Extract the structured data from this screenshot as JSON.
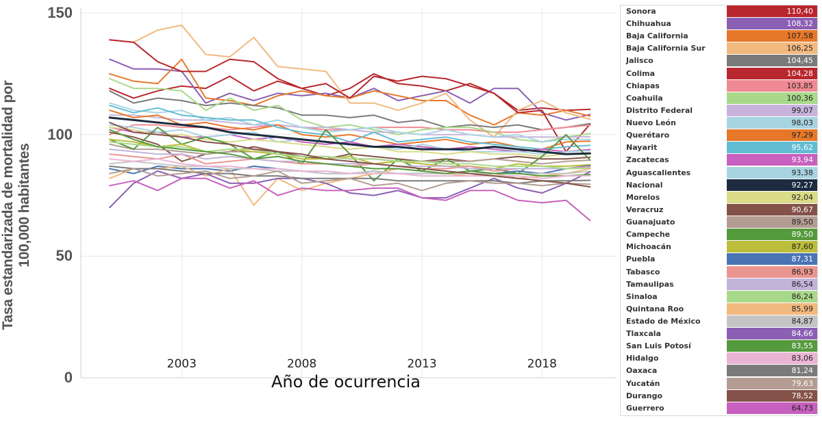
{
  "chart_data": {
    "type": "line",
    "title": "",
    "xlabel": "Año de ocurrencia",
    "ylabel": "Tasa estandarizada de mortalidad por 100,000 habitantes",
    "x": [
      2000,
      2001,
      2002,
      2003,
      2004,
      2005,
      2006,
      2007,
      2008,
      2009,
      2010,
      2011,
      2012,
      2013,
      2014,
      2015,
      2016,
      2017,
      2018,
      2019,
      2020
    ],
    "xticks": [
      2003,
      2008,
      2013,
      2018
    ],
    "xlim": [
      1998.8,
      2021.1
    ],
    "yticks": [
      0,
      50,
      100,
      150
    ],
    "ylim": [
      0,
      152
    ],
    "grid": true,
    "legend_position": "right",
    "series": [
      {
        "name": "Sonora",
        "color": "#b8272d",
        "label": "110,40",
        "light": true,
        "values": [
          119,
          115,
          118,
          120,
          119,
          124,
          118,
          122,
          119,
          116,
          119,
          125,
          121,
          120,
          118,
          121,
          117,
          110,
          111,
          110,
          110.4
        ]
      },
      {
        "name": "Chihuahua",
        "color": "#8a5fb4",
        "label": "108,32",
        "light": true,
        "values": [
          131,
          127,
          127,
          126,
          113,
          117,
          114,
          117,
          116,
          117,
          115,
          119,
          114,
          116,
          118,
          113,
          119,
          119,
          109,
          106,
          108.3
        ]
      },
      {
        "name": "Baja California",
        "color": "#e7782a",
        "label": "107,58",
        "light": false,
        "values": [
          125,
          122,
          121,
          131,
          115,
          114,
          112,
          116,
          118,
          116,
          115,
          118,
          116,
          114,
          114,
          108,
          104,
          109,
          108,
          110,
          107.6
        ]
      },
      {
        "name": "Baja California Sur",
        "color": "#f2b97f",
        "label": "106,25",
        "light": false,
        "values": [
          139,
          138,
          143,
          145,
          133,
          132,
          140,
          128,
          127,
          126,
          113,
          113,
          110,
          113,
          117,
          106,
          99,
          110,
          114,
          109,
          106.3
        ]
      },
      {
        "name": "Jalisco",
        "color": "#7a7a7a",
        "label": "104,45",
        "light": true,
        "values": [
          118,
          113,
          115,
          114,
          112,
          113,
          112,
          111,
          108,
          108,
          107,
          108,
          105,
          106,
          103,
          104,
          103,
          104,
          102,
          103,
          104.5
        ]
      },
      {
        "name": "Colima",
        "color": "#b8272d",
        "label": "104,28",
        "light": true,
        "values": [
          139,
          138,
          130,
          126,
          126,
          131,
          130,
          123,
          119,
          121,
          115,
          124,
          122,
          124,
          123,
          120,
          117,
          109,
          110,
          93,
          104.3
        ]
      },
      {
        "name": "Chiapas",
        "color": "#f08a92",
        "label": "103,85",
        "light": false,
        "values": [
          100,
          104,
          104,
          103,
          103,
          102,
          103,
          104,
          103,
          102,
          102,
          103,
          103,
          103,
          102,
          102,
          101,
          101,
          102,
          103,
          103.9
        ]
      },
      {
        "name": "Coahuila",
        "color": "#a8d98a",
        "label": "100,36",
        "light": false,
        "values": [
          123,
          119,
          119,
          118,
          110,
          115,
          110,
          112,
          106,
          103,
          104,
          102,
          100,
          102,
          103,
          103,
          101,
          98,
          97,
          99,
          100.4
        ]
      },
      {
        "name": "Distrito Federal",
        "color": "#c9b3dc",
        "label": "99,07",
        "light": false,
        "values": [
          108,
          108,
          107,
          106,
          106,
          105,
          104,
          104,
          103,
          103,
          102,
          101,
          101,
          100,
          100,
          100,
          99,
          99,
          99,
          99,
          99.1
        ]
      },
      {
        "name": "Nuevo León",
        "color": "#a8d4e2",
        "label": "98,03",
        "light": false,
        "values": [
          113,
          110,
          109,
          110,
          106,
          107,
          104,
          106,
          103,
          101,
          102,
          103,
          101,
          100,
          102,
          100,
          99,
          100,
          97,
          98,
          98.0
        ]
      },
      {
        "name": "Querétaro",
        "color": "#e7782a",
        "label": "97,29",
        "light": false,
        "values": [
          110,
          107,
          108,
          104,
          105,
          103,
          102,
          104,
          100,
          99,
          100,
          98,
          96,
          97,
          98,
          96,
          97,
          95,
          94,
          97,
          97.3
        ]
      },
      {
        "name": "Nayarit",
        "color": "#62bcd1",
        "label": "95,62",
        "light": true,
        "values": [
          112,
          109,
          111,
          108,
          107,
          106,
          106,
          103,
          101,
          100,
          97,
          101,
          97,
          98,
          99,
          97,
          96,
          95,
          94,
          95,
          95.6
        ]
      },
      {
        "name": "Zacatecas",
        "color": "#c760be",
        "label": "93,94",
        "light": true,
        "values": [
          103,
          101,
          101,
          99,
          99,
          100,
          98,
          99,
          97,
          96,
          97,
          95,
          96,
          95,
          94,
          95,
          94,
          93,
          94,
          93,
          93.9
        ]
      },
      {
        "name": "Aguascalientes",
        "color": "#a8d4e2",
        "label": "93,38",
        "light": false,
        "values": [
          104,
          103,
          101,
          102,
          99,
          100,
          101,
          97,
          98,
          97,
          96,
          95,
          94,
          96,
          94,
          93,
          93,
          93,
          92,
          93,
          93.4
        ]
      },
      {
        "name": "Nacional",
        "color": "#1c2b3f",
        "label": "92,27",
        "light": true,
        "width": 3,
        "values": [
          107,
          106,
          105,
          104,
          103,
          101,
          100,
          99,
          98,
          97,
          96,
          95,
          95,
          94,
          94,
          94,
          95,
          94,
          93,
          92,
          92.3
        ]
      },
      {
        "name": "Morelos",
        "color": "#dbdb88",
        "label": "92,04",
        "light": false,
        "values": [
          103,
          102,
          100,
          100,
          98,
          97,
          98,
          97,
          96,
          95,
          94,
          95,
          93,
          93,
          92,
          93,
          92,
          92,
          91,
          92,
          92.0
        ]
      },
      {
        "name": "Veracruz",
        "color": "#845248",
        "label": "90,67",
        "light": true,
        "values": [
          101,
          99,
          96,
          89,
          92,
          93,
          95,
          93,
          91,
          90,
          92,
          91,
          90,
          89,
          90,
          89,
          90,
          91,
          90,
          90,
          90.7
        ]
      },
      {
        "name": "Guanajuato",
        "color": "#b49c92",
        "label": "89,50",
        "light": false,
        "values": [
          96,
          94,
          94,
          93,
          92,
          93,
          93,
          92,
          91,
          91,
          90,
          90,
          89,
          89,
          89,
          89,
          90,
          89,
          88,
          89,
          89.5
        ]
      },
      {
        "name": "Campeche",
        "color": "#559a3d",
        "label": "89,50",
        "light": true,
        "values": [
          98,
          94,
          103,
          96,
          99,
          96,
          90,
          93,
          88,
          102,
          92,
          81,
          90,
          85,
          90,
          85,
          86,
          84,
          91,
          100,
          89.5
        ]
      },
      {
        "name": "Michoacán",
        "color": "#bcbd3a",
        "label": "87,60",
        "light": false,
        "values": [
          98,
          97,
          95,
          96,
          93,
          94,
          93,
          92,
          90,
          90,
          91,
          88,
          89,
          88,
          87,
          87,
          86,
          88,
          87,
          87,
          87.6
        ]
      },
      {
        "name": "Puebla",
        "color": "#4a75b5",
        "label": "87,31",
        "light": true,
        "values": [
          86,
          84,
          87,
          86,
          86,
          85,
          87,
          86,
          85,
          84,
          84,
          85,
          84,
          84,
          84,
          85,
          84,
          85,
          84,
          86,
          87.3
        ]
      },
      {
        "name": "Tabasco",
        "color": "#eb9590",
        "label": "86,93",
        "light": false,
        "values": [
          92,
          91,
          90,
          92,
          88,
          89,
          90,
          89,
          88,
          88,
          87,
          88,
          87,
          86,
          86,
          87,
          85,
          86,
          86,
          86,
          86.9
        ]
      },
      {
        "name": "Tamaulipas",
        "color": "#c2b3d9",
        "label": "86,54",
        "light": false,
        "values": [
          94,
          93,
          92,
          92,
          90,
          91,
          90,
          89,
          89,
          88,
          88,
          88,
          87,
          87,
          87,
          86,
          86,
          86,
          86,
          86,
          86.5
        ]
      },
      {
        "name": "Sinaloa",
        "color": "#a8d98a",
        "label": "86,24",
        "light": false,
        "values": [
          97,
          96,
          95,
          95,
          93,
          94,
          94,
          92,
          91,
          91,
          90,
          90,
          89,
          89,
          88,
          88,
          87,
          87,
          87,
          86,
          86.2
        ]
      },
      {
        "name": "Quintana Roo",
        "color": "#f2b97f",
        "label": "85,99",
        "light": false,
        "values": [
          82,
          86,
          86,
          87,
          83,
          86,
          71,
          82,
          77,
          80,
          82,
          84,
          86,
          85,
          84,
          83,
          84,
          82,
          83,
          84,
          86.0
        ]
      },
      {
        "name": "Estado de México",
        "color": "#c4c4c4",
        "label": "84,87",
        "light": false,
        "values": [
          88,
          89,
          88,
          87,
          87,
          86,
          86,
          85,
          85,
          84,
          84,
          85,
          84,
          84,
          84,
          84,
          84,
          84,
          84,
          84,
          84.9
        ]
      },
      {
        "name": "Tlaxcala",
        "color": "#8a5fb4",
        "label": "84,66",
        "light": true,
        "values": [
          70,
          80,
          85,
          82,
          84,
          80,
          80,
          82,
          82,
          80,
          76,
          75,
          77,
          74,
          74,
          78,
          82,
          78,
          76,
          80,
          84.7
        ]
      },
      {
        "name": "San Luis Potosí",
        "color": "#559a3d",
        "label": "83,55",
        "light": true,
        "values": [
          102,
          98,
          95,
          94,
          93,
          92,
          90,
          91,
          89,
          88,
          87,
          86,
          86,
          85,
          84,
          85,
          84,
          84,
          83,
          83,
          83.6
        ]
      },
      {
        "name": "Hidalgo",
        "color": "#eab5d4",
        "label": "83,06",
        "light": false,
        "values": [
          90,
          89,
          90,
          88,
          87,
          87,
          86,
          86,
          85,
          85,
          84,
          84,
          84,
          83,
          83,
          83,
          83,
          83,
          82,
          83,
          83.1
        ]
      },
      {
        "name": "Oaxaca",
        "color": "#7a7a7a",
        "label": "81,24",
        "light": true,
        "values": [
          87,
          86,
          86,
          85,
          84,
          84,
          83,
          83,
          82,
          82,
          82,
          82,
          81,
          81,
          81,
          81,
          81,
          80,
          81,
          81,
          81.2
        ]
      },
      {
        "name": "Yucatán",
        "color": "#b49c92",
        "label": "79,63",
        "light": true,
        "values": [
          84,
          86,
          83,
          84,
          85,
          82,
          83,
          85,
          80,
          81,
          82,
          79,
          80,
          77,
          80,
          81,
          80,
          80,
          79,
          80,
          79.6
        ]
      },
      {
        "name": "Durango",
        "color": "#845248",
        "label": "78,52",
        "light": true,
        "values": [
          105,
          101,
          100,
          99,
          97,
          96,
          94,
          93,
          92,
          90,
          89,
          88,
          87,
          86,
          85,
          84,
          83,
          82,
          81,
          80,
          78.5
        ]
      },
      {
        "name": "Guerrero",
        "color": "#c760be",
        "label": "64,73",
        "light": false,
        "values": [
          79,
          81,
          77,
          82,
          82,
          78,
          81,
          75,
          78,
          77,
          77,
          78,
          78,
          74,
          73,
          77,
          77,
          73,
          72,
          73,
          64.7
        ]
      }
    ]
  }
}
